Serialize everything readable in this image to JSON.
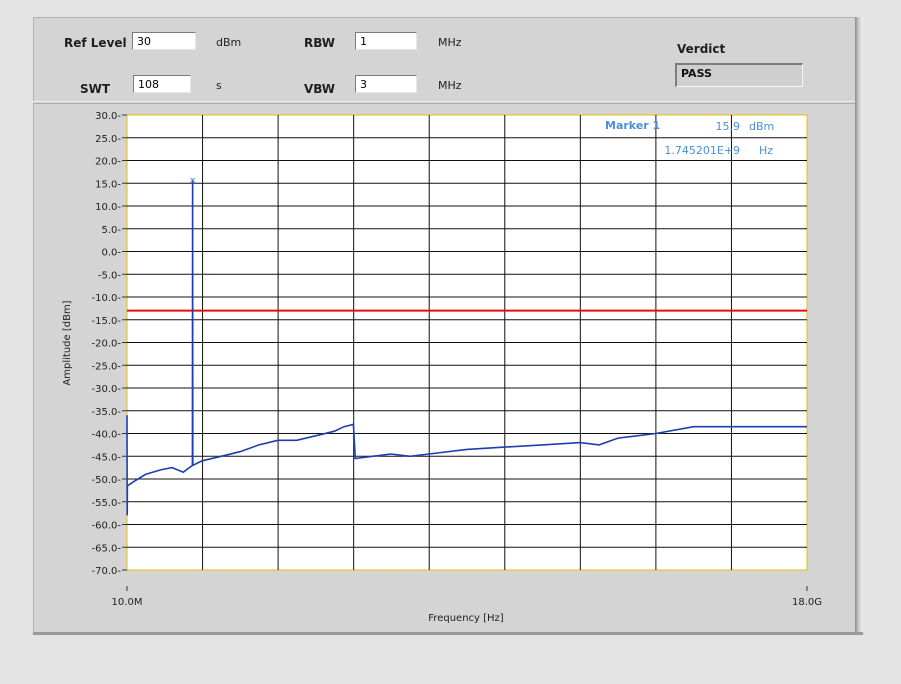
{
  "controls": {
    "ref_level": {
      "label": "Ref Level",
      "value": "30",
      "unit": "dBm"
    },
    "swt": {
      "label": "SWT",
      "value": "108",
      "unit": "s"
    },
    "rbw": {
      "label": "RBW",
      "value": "1",
      "unit": "MHz"
    },
    "vbw": {
      "label": "VBW",
      "value": "3",
      "unit": "MHz"
    },
    "verdict": {
      "label": "Verdict",
      "value": "PASS"
    }
  },
  "colors": {
    "plot_bg": "#ffffff",
    "trace": "#1c3fb0",
    "limit": "#e01010",
    "marker_text": "#4a90d9",
    "grid": "#111111"
  },
  "marker": {
    "title": "Marker 1",
    "amplitude": "15.9",
    "amplitude_unit": "dBm",
    "frequency": "1.745201E+9",
    "frequency_unit": "Hz"
  },
  "chart_data": {
    "type": "line",
    "ylabel": "Amplitude [dBm]",
    "xlabel": "Frequency [Hz]",
    "x_tick_labels": [
      "10.0M",
      "18.0G"
    ],
    "xlim_hz": [
      10000000,
      18000000000
    ],
    "ylim": [
      -70,
      30
    ],
    "y_tick_labels": [
      "30.0",
      "25.0",
      "20.0",
      "15.0",
      "10.0",
      "5.0",
      "0.0",
      "-5.0",
      "-10.0",
      "-15.0",
      "-20.0",
      "-25.0",
      "-30.0",
      "-35.0",
      "-40.0",
      "-45.0",
      "-50.0",
      "-55.0",
      "-60.0",
      "-65.0",
      "-70.0"
    ],
    "grid": true,
    "limit_line_dbm": -13,
    "series": [
      {
        "x_hz": [
          10000000,
          15000000,
          20000000,
          200000000,
          500000000,
          900000000,
          1200000000,
          1500000000,
          1740000000,
          1745201000,
          1750000000,
          2000000000,
          2500000000,
          3000000000,
          3500000000,
          4000000000,
          4500000000,
          5000000000,
          5500000000,
          5750000000,
          6000000000,
          6050000000,
          6500000000,
          7000000000,
          7500000000,
          8000000000,
          9000000000,
          10000000000,
          11000000000,
          12000000000,
          12500000000,
          13000000000,
          14000000000,
          15000000000,
          16000000000,
          17000000000,
          18000000000
        ],
        "y": [
          -36,
          -58,
          -51.5,
          -50.5,
          -49,
          -48,
          -47.5,
          -48.5,
          -47,
          15.9,
          -47,
          -46,
          -45,
          -44,
          -42.5,
          -41.5,
          -41.5,
          -40.5,
          -39.5,
          -38.5,
          -38,
          -45.5,
          -45,
          -44.5,
          -45,
          -44.5,
          -43.5,
          -43,
          -42.5,
          -42,
          -42.5,
          -41,
          -40,
          -38.5,
          -38.5,
          -38.5,
          -38.5
        ]
      }
    ]
  }
}
